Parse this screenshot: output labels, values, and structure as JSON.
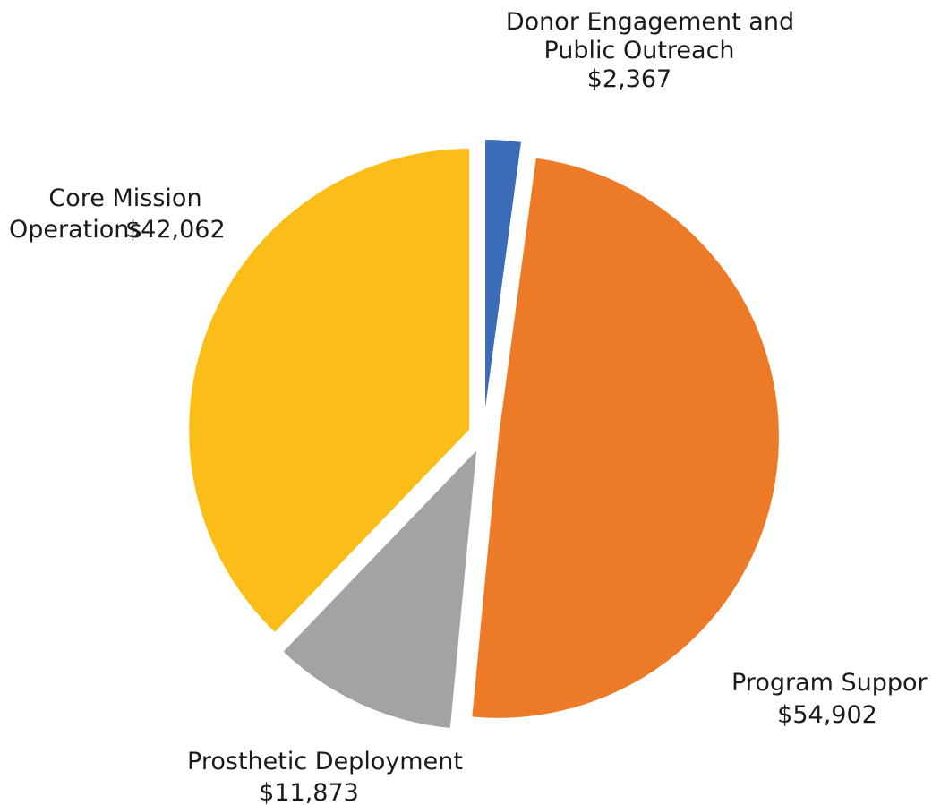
{
  "chart_data": {
    "type": "pie",
    "title": "",
    "slices": [
      {
        "label_lines": [
          "Donor Engagement and",
          "Public Outreach"
        ],
        "value_label": "$2,367",
        "value": 2367,
        "color": "#3a6cb8"
      },
      {
        "label_lines": [
          "Program Suppor"
        ],
        "value_label": "$54,902",
        "value": 54902,
        "color": "#ec7a26"
      },
      {
        "label_lines": [
          "Prosthetic Deployment"
        ],
        "value_label": "$11,873",
        "value": 11873,
        "color": "#a3a3a3"
      },
      {
        "label_lines": [
          "Core Mission",
          "Operations"
        ],
        "value_label": "$42,062",
        "value": 42062,
        "color": "#fbbd17"
      }
    ],
    "legend": "none",
    "exploded": true
  }
}
